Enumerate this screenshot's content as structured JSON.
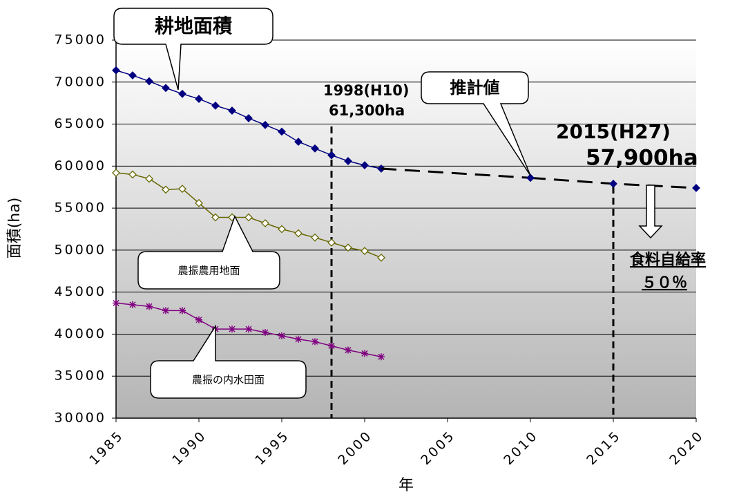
{
  "chart_data": {
    "type": "line",
    "ylabel": "面積(ha)",
    "xlabel": "年",
    "xlim": [
      1985,
      2020
    ],
    "xticks": [
      1985,
      1990,
      1995,
      2000,
      2005,
      2010,
      2015,
      2020
    ],
    "ylim": [
      30000,
      75000
    ],
    "yticks": [
      30000,
      35000,
      40000,
      45000,
      50000,
      55000,
      60000,
      65000,
      70000,
      75000
    ],
    "grid": true,
    "series": [
      {
        "name": "耕地面積",
        "color": "#000080",
        "marker": "diamond",
        "x": [
          1985,
          1986,
          1987,
          1988,
          1989,
          1990,
          1991,
          1992,
          1993,
          1994,
          1995,
          1996,
          1997,
          1998,
          1999,
          2000,
          2001
        ],
        "values": [
          71400,
          70800,
          70100,
          69300,
          68600,
          68000,
          67200,
          66600,
          65700,
          64900,
          64100,
          62900,
          62100,
          61300,
          60600,
          60100,
          59700
        ]
      },
      {
        "name": "推計値",
        "color": "#000080",
        "marker": "diamond",
        "dashed": true,
        "x": [
          2010,
          2015,
          2020
        ],
        "values": [
          58600,
          57900,
          57400
        ]
      },
      {
        "name": "農振農用地面",
        "color": "#666600",
        "marker": "open-diamond",
        "x": [
          1985,
          1986,
          1987,
          1988,
          1989,
          1990,
          1991,
          1992,
          1993,
          1994,
          1995,
          1996,
          1997,
          1998,
          1999,
          2000,
          2001
        ],
        "values": [
          59200,
          59000,
          58500,
          57200,
          57300,
          55600,
          53900,
          53900,
          53900,
          53200,
          52500,
          52000,
          51500,
          50900,
          50300,
          49900,
          49100
        ]
      },
      {
        "name": "農振の内水田面",
        "color": "#800080",
        "marker": "asterisk",
        "x": [
          1985,
          1986,
          1987,
          1988,
          1989,
          1990,
          1991,
          1992,
          1993,
          1994,
          1995,
          1996,
          1997,
          1998,
          1999,
          2000,
          2001
        ],
        "values": [
          43700,
          43500,
          43300,
          42800,
          42800,
          41700,
          40600,
          40600,
          40600,
          40200,
          39800,
          39400,
          39100,
          38600,
          38100,
          37700,
          37300
        ]
      }
    ],
    "reference_lines": [
      1998,
      2015
    ],
    "annotations": [
      "1998(H10)",
      "61,300ha",
      "2015(H27)",
      "57,900ha",
      "食料自給率",
      "５０％"
    ]
  }
}
